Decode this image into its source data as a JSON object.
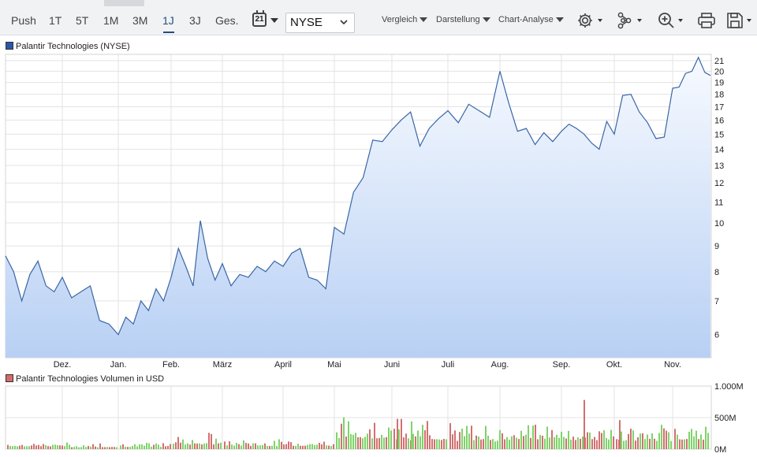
{
  "toolbar": {
    "ranges": [
      "Push",
      "1T",
      "5T",
      "1M",
      "3M",
      "1J",
      "3J",
      "Ges."
    ],
    "active_range": "1J",
    "calendar_day": "21",
    "exchange": "NYSE",
    "menus": [
      "Vergleich",
      "Darstellung",
      "Chart-Analyse"
    ],
    "tools": [
      "settings-icon",
      "share-network-icon",
      "zoom-in-icon",
      "print-icon",
      "save-icon"
    ]
  },
  "colors": {
    "price_line": "#3a66a6",
    "area_top": "#f7faff",
    "area_bottom": "#b8d0f4",
    "vol_up": "#7fd36a",
    "vol_down": "#d27070",
    "accent": "#1f4f7e"
  },
  "price_chart": {
    "legend": "Palantir Technologies (NYSE)",
    "legend_color": "#2b56a8",
    "y_ticks": [
      "6",
      "7",
      "8",
      "9",
      "10",
      "11",
      "12",
      "13",
      "14",
      "15",
      "16",
      "17",
      "18",
      "19",
      "20",
      "21"
    ],
    "x_ticks": [
      "Dez.",
      "Jan.",
      "Feb.",
      "März",
      "April",
      "Mai",
      "Juni",
      "Juli",
      "Aug.",
      "Sep.",
      "Okt.",
      "Nov."
    ],
    "y_scale": "log"
  },
  "volume_chart": {
    "legend": "Palantir Technologies Volumen in USD",
    "legend_color": "#d66a6a",
    "y_ticks": [
      "1.000M",
      "500M",
      "0M"
    ],
    "y_range": [
      0,
      1000
    ]
  },
  "chart_data": [
    {
      "type": "area",
      "series": [
        {
          "name": "Palantir Technologies (NYSE)",
          "x": [
            "Nov.",
            "Dez.",
            "Jan.",
            "Feb.",
            "März",
            "April",
            "Mai",
            "Juni",
            "Juli",
            "Aug.",
            "Sep.",
            "Okt.",
            "Nov."
          ],
          "points": [
            [
              "Nov.",
              8.6
            ],
            [
              "Nov.",
              8.0
            ],
            [
              "Nov.",
              7.0
            ],
            [
              "Nov.",
              7.9
            ],
            [
              "Nov.",
              8.4
            ],
            [
              "Nov.",
              7.5
            ],
            [
              "Nov.",
              7.3
            ],
            [
              "Dez.",
              7.8
            ],
            [
              "Dez.",
              7.1
            ],
            [
              "Dez.",
              7.3
            ],
            [
              "Dez.",
              7.5
            ],
            [
              "Dez.",
              6.4
            ],
            [
              "Dez.",
              6.3
            ],
            [
              "Jan.",
              6.0
            ],
            [
              "Jan.",
              6.5
            ],
            [
              "Jan.",
              6.3
            ],
            [
              "Jan.",
              7.0
            ],
            [
              "Jan.",
              6.7
            ],
            [
              "Jan.",
              7.4
            ],
            [
              "Jan.",
              7.0
            ],
            [
              "Feb.",
              7.8
            ],
            [
              "Feb.",
              8.9
            ],
            [
              "Feb.",
              8.2
            ],
            [
              "Feb.",
              7.5
            ],
            [
              "Feb.",
              10.1
            ],
            [
              "Feb.",
              8.5
            ],
            [
              "Feb.",
              7.7
            ],
            [
              "März",
              8.3
            ],
            [
              "März",
              7.5
            ],
            [
              "März",
              7.9
            ],
            [
              "März",
              7.8
            ],
            [
              "März",
              8.2
            ],
            [
              "März",
              8.0
            ],
            [
              "März",
              8.4
            ],
            [
              "April",
              8.2
            ],
            [
              "April",
              8.7
            ],
            [
              "April",
              8.9
            ],
            [
              "April",
              7.8
            ],
            [
              "April",
              7.7
            ],
            [
              "April",
              7.4
            ],
            [
              "Mai",
              9.8
            ],
            [
              "Mai",
              9.5
            ],
            [
              "Mai",
              11.5
            ],
            [
              "Mai",
              12.3
            ],
            [
              "Mai",
              14.6
            ],
            [
              "Mai",
              14.5
            ],
            [
              "Juni",
              15.3
            ],
            [
              "Juni",
              16.0
            ],
            [
              "Juni",
              16.6
            ],
            [
              "Juni",
              14.2
            ],
            [
              "Juni",
              15.4
            ],
            [
              "Juni",
              16.1
            ],
            [
              "Juli",
              16.7
            ],
            [
              "Juli",
              15.8
            ],
            [
              "Juli",
              17.2
            ],
            [
              "Juli",
              16.7
            ],
            [
              "Juli",
              16.2
            ],
            [
              "Aug.",
              20.0
            ],
            [
              "Aug.",
              17.3
            ],
            [
              "Aug.",
              15.2
            ],
            [
              "Aug.",
              15.4
            ],
            [
              "Aug.",
              14.3
            ],
            [
              "Aug.",
              15.1
            ],
            [
              "Aug.",
              14.5
            ],
            [
              "Sep.",
              15.2
            ],
            [
              "Sep.",
              15.7
            ],
            [
              "Sep.",
              15.4
            ],
            [
              "Sep.",
              15.0
            ],
            [
              "Sep.",
              14.4
            ],
            [
              "Sep.",
              14.0
            ],
            [
              "Sep.",
              15.9
            ],
            [
              "Okt.",
              15.0
            ],
            [
              "Okt.",
              17.9
            ],
            [
              "Okt.",
              18.0
            ],
            [
              "Okt.",
              16.6
            ],
            [
              "Okt.",
              15.8
            ],
            [
              "Okt.",
              14.7
            ],
            [
              "Okt.",
              14.8
            ],
            [
              "Nov.",
              18.5
            ],
            [
              "Nov.",
              18.6
            ],
            [
              "Nov.",
              19.8
            ],
            [
              "Nov.",
              20.0
            ],
            [
              "Nov.",
              21.3
            ],
            [
              "Nov.",
              19.9
            ]
          ]
        }
      ],
      "ylim": [
        5.4,
        21.6
      ],
      "y_scale": "log",
      "grid": true,
      "legend_position": "top-left"
    },
    {
      "type": "bar",
      "series": [
        {
          "name": "Palantir Technologies Volumen in USD",
          "segments": [
            [
              "Nov.",
              "Dez.",
              40,
              110
            ],
            [
              "Dez.",
              "Jan.",
              30,
              90
            ],
            [
              "Jan.",
              "Feb.",
              35,
              100
            ],
            [
              "Feb.",
              "März",
              70,
              230
            ],
            [
              "März",
              "Mai",
              50,
              140
            ],
            [
              "Mai",
              "Juni",
              170,
              480
            ],
            [
              "Juni",
              "Juli",
              140,
              420
            ],
            [
              "Juli",
              "Aug.",
              120,
              380
            ],
            [
              "Aug.",
              "Sep.",
              150,
              420
            ],
            [
              "Sep.",
              "Okt.",
              140,
              380
            ],
            [
              "Okt.",
              "Nov.",
              130,
              360
            ],
            [
              "Nov.",
              "Nov.",
              150,
              400
            ]
          ],
          "peaks": [
            [
              "Juni",
              480
            ],
            [
              "Juni",
              440
            ],
            [
              "Aug.",
              780
            ],
            [
              "Okt.",
              460
            ]
          ]
        }
      ],
      "ylim": [
        0,
        1000
      ],
      "grid": true,
      "legend_position": "top-left"
    }
  ]
}
